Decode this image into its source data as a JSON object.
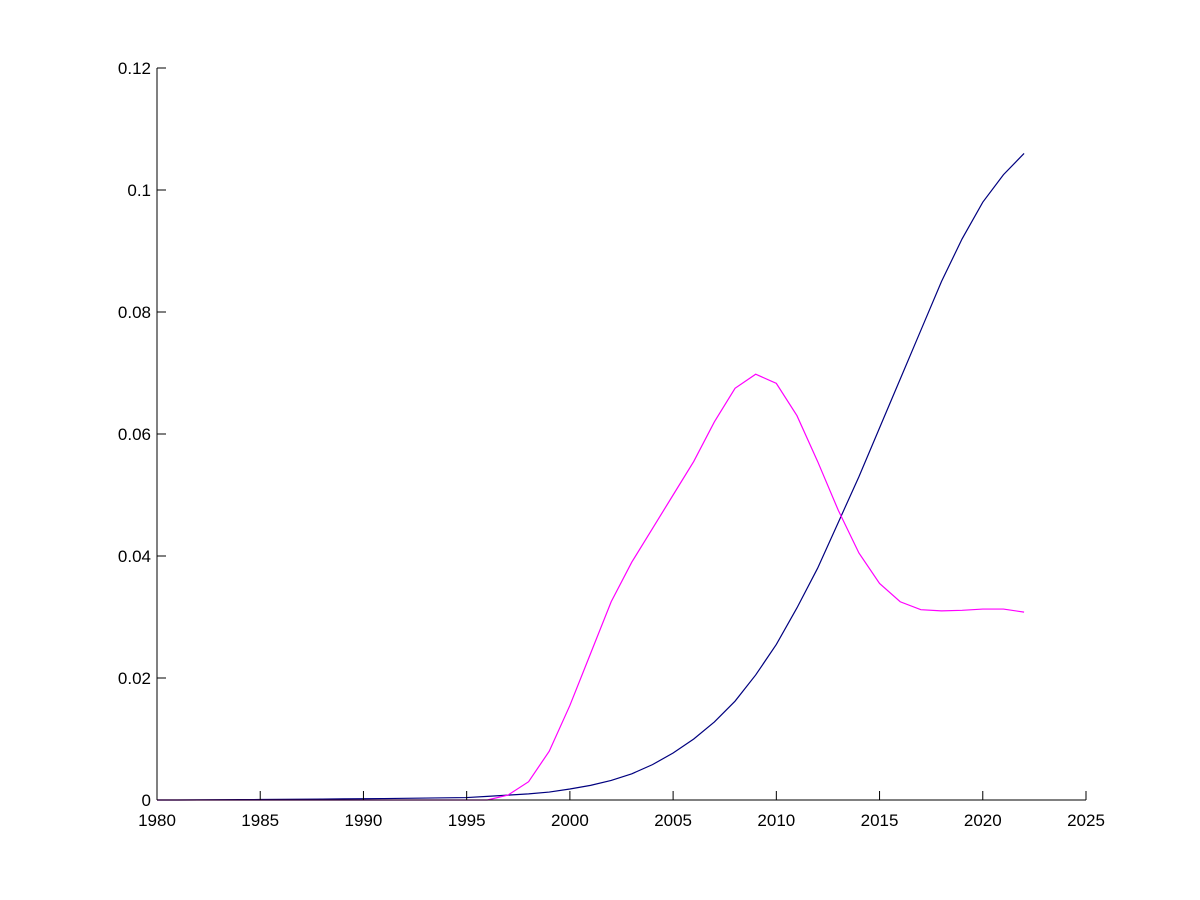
{
  "chart_data": {
    "type": "line",
    "x": [
      1980,
      1981,
      1982,
      1983,
      1984,
      1985,
      1986,
      1987,
      1988,
      1989,
      1990,
      1991,
      1992,
      1993,
      1994,
      1995,
      1996,
      1997,
      1998,
      1999,
      2000,
      2001,
      2002,
      2003,
      2004,
      2005,
      2006,
      2007,
      2008,
      2009,
      2010,
      2011,
      2012,
      2013,
      2014,
      2015,
      2016,
      2017,
      2018,
      2019,
      2020,
      2021,
      2022
    ],
    "series": [
      {
        "color": "#00007f",
        "values": [
          0,
          0,
          2e-05,
          4e-05,
          6e-05,
          8e-05,
          0.0001,
          0.00012,
          0.00015,
          0.00018,
          0.0002,
          0.00024,
          0.00028,
          0.00032,
          0.00036,
          0.0004,
          0.0006,
          0.0008,
          0.001,
          0.0013,
          0.0018,
          0.0024,
          0.0032,
          0.0043,
          0.0058,
          0.0077,
          0.01,
          0.0128,
          0.0162,
          0.0205,
          0.0255,
          0.0315,
          0.038,
          0.0455,
          0.053,
          0.061,
          0.069,
          0.077,
          0.085,
          0.092,
          0.098,
          0.1025,
          0.106
        ]
      },
      {
        "color": "#ff00ff",
        "values": [
          0,
          0,
          0,
          0,
          0,
          0,
          0,
          0,
          0,
          0,
          0,
          0,
          0,
          0,
          0,
          0,
          0,
          0.0008,
          0.003,
          0.008,
          0.0155,
          0.024,
          0.0325,
          0.039,
          0.0445,
          0.05,
          0.0555,
          0.062,
          0.0675,
          0.0698,
          0.0683,
          0.063,
          0.0555,
          0.0475,
          0.0405,
          0.0355,
          0.0325,
          0.0312,
          0.031,
          0.0311,
          0.0313,
          0.0313,
          0.0308
        ]
      }
    ],
    "xlim": [
      1980,
      2025
    ],
    "xticks": [
      1980,
      1985,
      1990,
      1995,
      2000,
      2005,
      2010,
      2015,
      2020,
      2025
    ],
    "ylim": [
      0,
      0.12
    ],
    "yticks": [
      0,
      0.02,
      0.04,
      0.06,
      0.08,
      0.1,
      0.12
    ]
  }
}
